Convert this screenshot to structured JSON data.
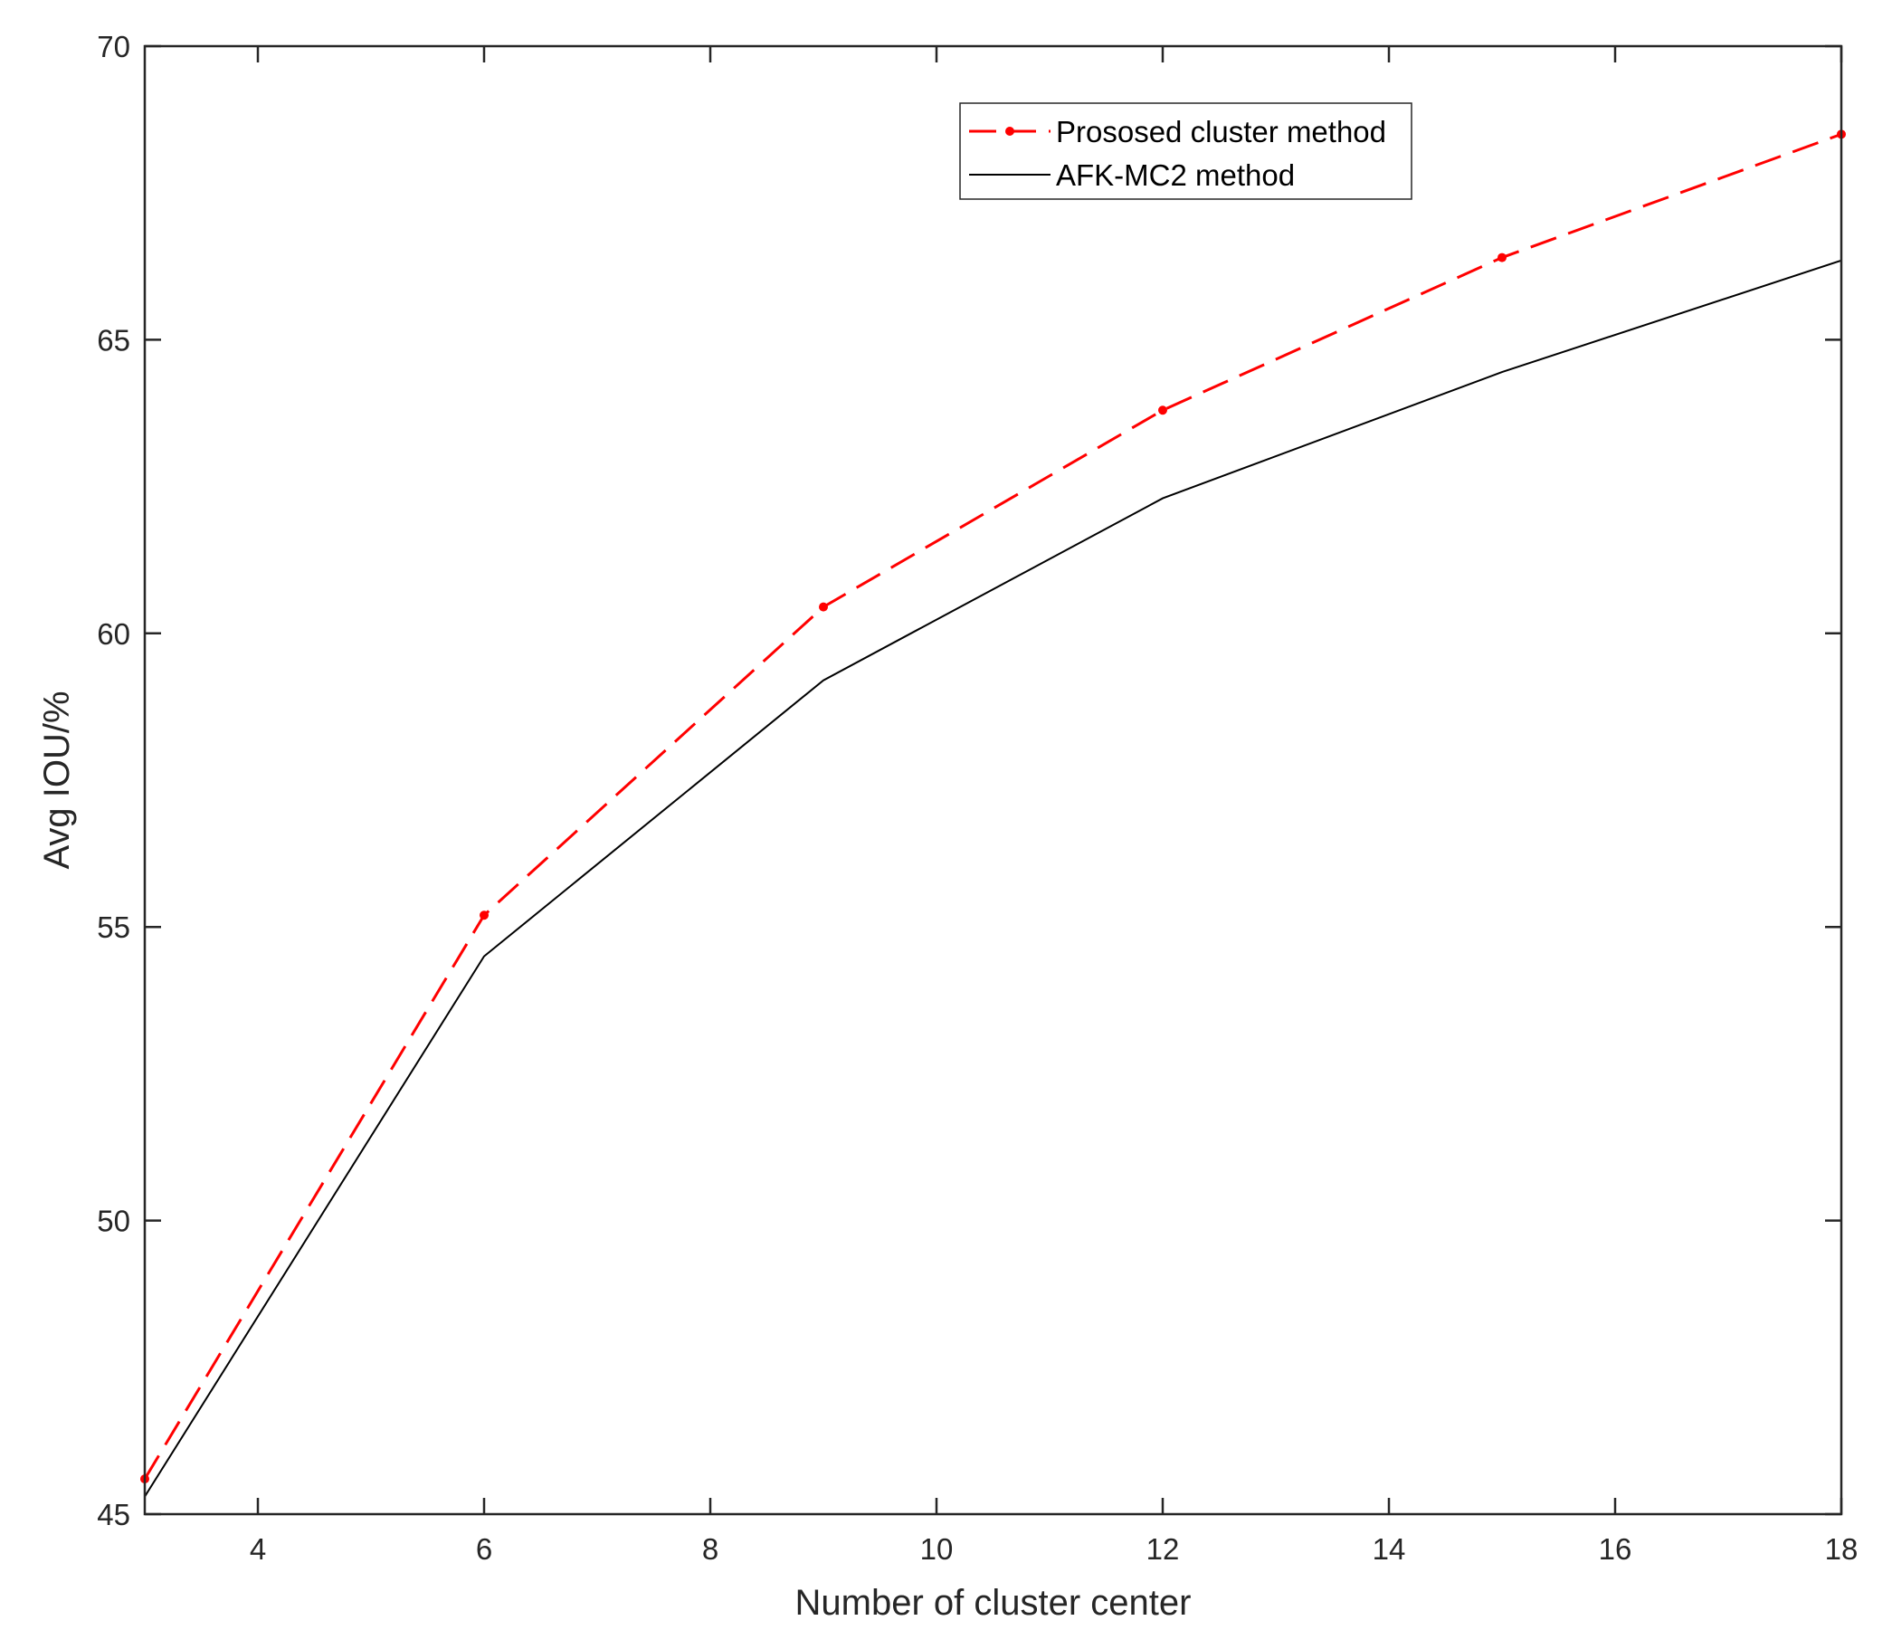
{
  "chart_data": {
    "type": "line",
    "title": "",
    "xlabel": "Number of cluster center",
    "ylabel": "Avg IOU/%",
    "xlim": [
      3,
      18
    ],
    "ylim": [
      45,
      70
    ],
    "xticks": [
      4,
      6,
      8,
      10,
      12,
      14,
      16,
      18
    ],
    "yticks": [
      45,
      50,
      55,
      60,
      65,
      70
    ],
    "grid": false,
    "legend_position": "top-right",
    "x": [
      3,
      6,
      9,
      12,
      15,
      18
    ],
    "series": [
      {
        "name": "Prososed cluster method",
        "values": [
          45.6,
          55.2,
          60.45,
          63.8,
          66.4,
          68.5
        ],
        "color": "#ff0000",
        "line_style": "dashed",
        "marker": "dot"
      },
      {
        "name": "AFK-MC2 method",
        "values": [
          45.3,
          54.5,
          59.2,
          62.3,
          64.45,
          66.35
        ],
        "color": "#000000",
        "line_style": "solid",
        "marker": "none"
      }
    ]
  }
}
